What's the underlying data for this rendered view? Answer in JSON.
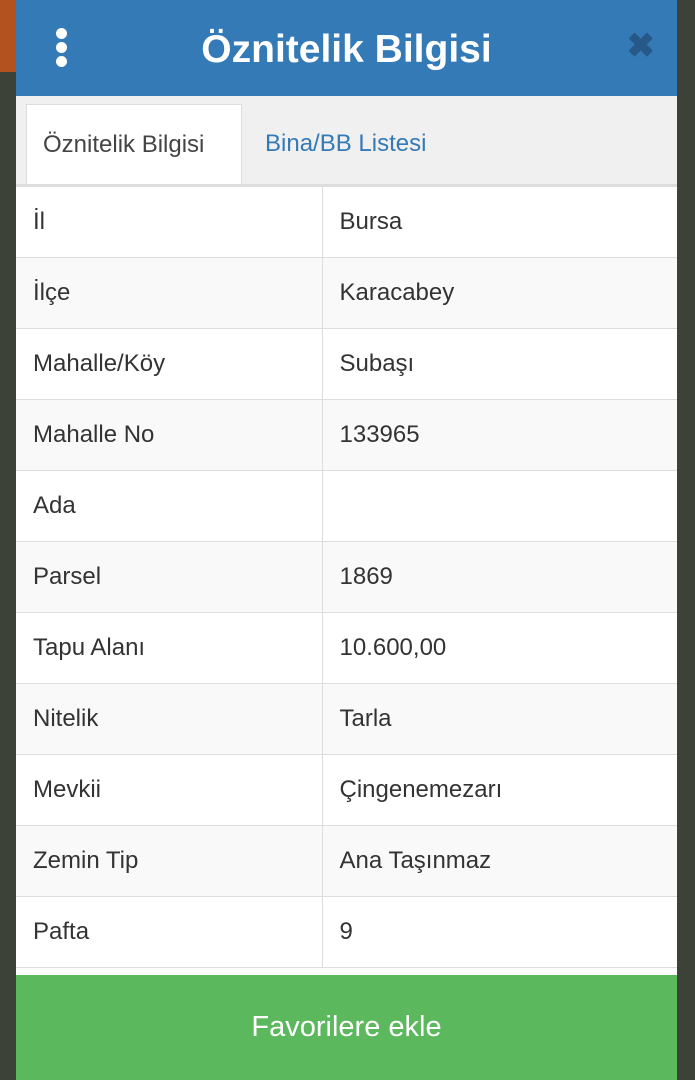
{
  "header": {
    "title": "Öznitelik Bilgisi",
    "menu_icon": "vertical-dots-icon",
    "close_icon": "close-icon"
  },
  "tabs": [
    {
      "label": "Öznitelik Bilgisi",
      "active": true
    },
    {
      "label": "Bina/BB Listesi",
      "active": false
    }
  ],
  "rows": [
    {
      "label": "İl",
      "value": "Bursa"
    },
    {
      "label": "İlçe",
      "value": "Karacabey"
    },
    {
      "label": "Mahalle/Köy",
      "value": "Subaşı"
    },
    {
      "label": "Mahalle No",
      "value": "133965"
    },
    {
      "label": "Ada",
      "value": ""
    },
    {
      "label": "Parsel",
      "value": "1869"
    },
    {
      "label": "Tapu Alanı",
      "value": "10.600,00"
    },
    {
      "label": "Nitelik",
      "value": "Tarla"
    },
    {
      "label": "Mevkii",
      "value": "Çingenemezarı"
    },
    {
      "label": "Zemin Tip",
      "value": "Ana Taşınmaz"
    },
    {
      "label": "Pafta",
      "value": "9"
    }
  ],
  "footer": {
    "button_label": "Favorilere ekle"
  },
  "colors": {
    "header": "#337ab7",
    "button": "#5cb85c",
    "tab_link": "#337ab7"
  }
}
